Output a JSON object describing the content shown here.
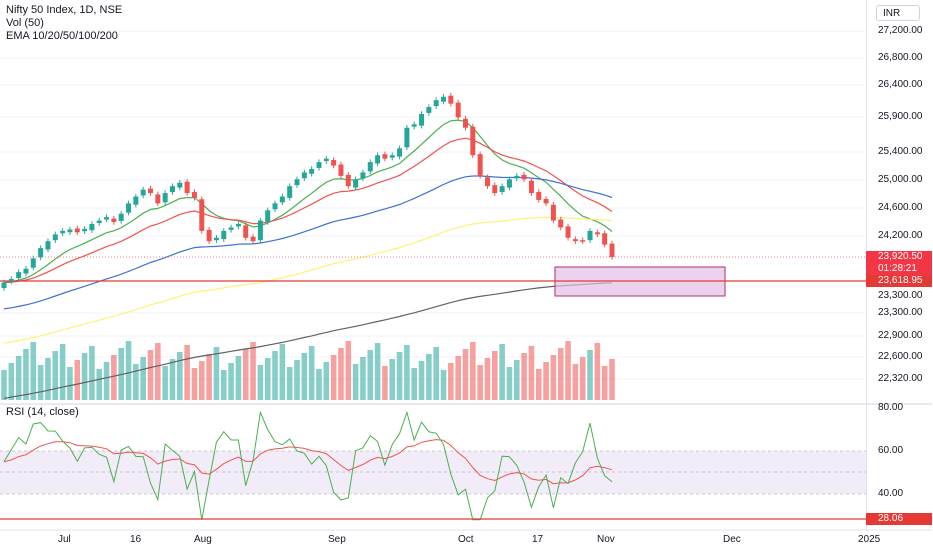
{
  "legend": {
    "symbol": "Nifty 50 Index, 1D, NSE",
    "volume": "Vol (50)",
    "ema": "EMA 10/20/50/100/200"
  },
  "rsi": {
    "label": "RSI (14, close)",
    "ticks": [
      "80.00",
      "60.00",
      "40.00"
    ],
    "current": "28.06"
  },
  "price_axis": {
    "currency": "INR",
    "ticks": [
      "27,200.00",
      "26,800.00",
      "26,400.00",
      "25,900.00",
      "25,400.00",
      "25,000.00",
      "24,600.00",
      "24,200.00",
      "23,300.00",
      "22,900.00",
      "22,600.00",
      "22,320.00"
    ],
    "last_price": "23,920.50",
    "countdown": "01:28:21",
    "line_price": "23,618.95",
    "partial_tick": "23,300.00"
  },
  "time_axis": [
    "Jul",
    "16",
    "Aug",
    "Sep",
    "Oct",
    "17",
    "Nov",
    "Dec",
    "2025"
  ],
  "colors": {
    "up": "#26a69a",
    "down": "#ef5350",
    "rsi": "#4caf50",
    "rsi_ma": "#ef5350",
    "zone": "#e1bee7"
  },
  "chart_data": {
    "type": "candlestick",
    "ema_lines": [
      "EMA 10",
      "EMA 20",
      "EMA 50",
      "EMA 100",
      "EMA 200"
    ],
    "close_approx": [
      23550,
      23600,
      23700,
      23750,
      23900,
      24050,
      24150,
      24250,
      24300,
      24320,
      24280,
      24330,
      24400,
      24450,
      24500,
      24430,
      24550,
      24700,
      24800,
      24900,
      24850,
      24700,
      24850,
      24950,
      25000,
      24850,
      24780,
      24300,
      24150,
      24200,
      24300,
      24350,
      24400,
      24200,
      24150,
      24450,
      24600,
      24700,
      24800,
      24950,
      25050,
      25150,
      25200,
      25300,
      25350,
      25250,
      25100,
      24950,
      25050,
      25150,
      25300,
      25400,
      25350,
      25400,
      25500,
      25800,
      25850,
      26000,
      26100,
      26200,
      26250,
      26150,
      25950,
      25800,
      25400,
      25100,
      24950,
      24850,
      24950,
      25050,
      25100,
      25050,
      24850,
      24750,
      24700,
      24450,
      24350,
      24200,
      24150,
      24150,
      24300,
      24250,
      24100,
      23920
    ],
    "levels": {
      "support_line": 23618.95,
      "last": 23920.5
    },
    "rsi_range": [
      0,
      100
    ]
  }
}
